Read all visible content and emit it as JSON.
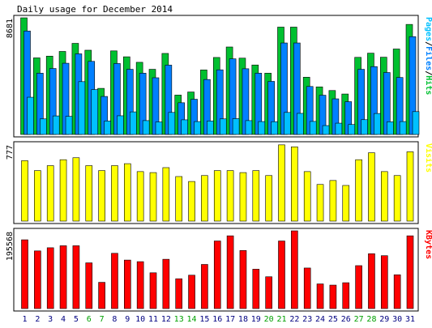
{
  "chart_data": {
    "type": "bar",
    "title": "Daily usage for December 2014",
    "categories": [
      "1",
      "2",
      "3",
      "4",
      "5",
      "6",
      "7",
      "8",
      "9",
      "10",
      "11",
      "12",
      "13",
      "14",
      "15",
      "16",
      "17",
      "18",
      "19",
      "20",
      "21",
      "22",
      "23",
      "24",
      "25",
      "26",
      "27",
      "28",
      "29",
      "30",
      "31"
    ],
    "weekend_days": [
      "6",
      "7",
      "13",
      "14",
      "20",
      "21",
      "27",
      "28"
    ],
    "colors": {
      "hits": "#00c030",
      "files": "#0080ff",
      "pages": "#00c0ff",
      "visits": "#ffff00",
      "kbytes": "#ff0000",
      "weekday_label": "#000080",
      "weekend_label": "#00a000"
    },
    "panels": [
      {
        "id": "hits-files-pages",
        "ymax_label": "8681",
        "ylim": [
          0,
          8681
        ],
        "legend": [
          {
            "text": "Pages",
            "color": "#00c0ff"
          },
          {
            "text": "/",
            "color": "#000000"
          },
          {
            "text": "Files",
            "color": "#0080ff"
          },
          {
            "text": "/",
            "color": "#000000"
          },
          {
            "text": "Hits",
            "color": "#00c030"
          }
        ],
        "series": [
          {
            "name": "Hits",
            "color": "#00c030",
            "values": [
              8681,
              5700,
              5830,
              6180,
              6780,
              6270,
              3430,
              6220,
              5780,
              5370,
              4850,
              6030,
              2930,
              3160,
              4800,
              5730,
              6510,
              5680,
              5170,
              4560,
              7990,
              7990,
              4260,
              3540,
              3270,
              3010,
              5740,
              6050,
              5750,
              6360,
              8190
            ]
          },
          {
            "name": "Files",
            "color": "#0080ff",
            "values": [
              7700,
              4560,
              4910,
              5300,
              6000,
              5440,
              2830,
              5280,
              4850,
              4560,
              4220,
              5160,
              2360,
              2620,
              4090,
              4810,
              5630,
              4890,
              4560,
              3950,
              6810,
              6810,
              3570,
              2920,
              2650,
              2440,
              4850,
              5050,
              4610,
              4240,
              7280
            ]
          },
          {
            "name": "Pages",
            "color": "#00c0ff",
            "values": [
              2770,
              1160,
              1380,
              1350,
              3930,
              3340,
              1000,
              1390,
              1680,
              1030,
              930,
              1640,
              1090,
              960,
              1000,
              1160,
              1180,
              1030,
              960,
              950,
              1640,
              1570,
              970,
              660,
              840,
              740,
              1100,
              1560,
              940,
              960,
              1700
            ]
          }
        ]
      },
      {
        "id": "visits",
        "ymax_label": "777",
        "ylim": [
          0,
          777
        ],
        "legend": [
          {
            "text": "Visits",
            "color": "#ffff00"
          }
        ],
        "series": [
          {
            "name": "Visits",
            "color": "#ffff00",
            "values": [
              610,
              510,
              560,
              620,
              640,
              560,
              510,
              560,
              580,
              500,
              490,
              540,
              450,
              400,
              460,
              510,
              510,
              490,
              510,
              460,
              770,
              750,
              500,
              370,
              410,
              360,
              620,
              690,
              500,
              460,
              700
            ]
          }
        ]
      },
      {
        "id": "kbytes",
        "ymax_label": "195568",
        "ylim": [
          0,
          195568
        ],
        "legend": [
          {
            "text": "KBytes",
            "color": "#ff0000"
          }
        ],
        "series": [
          {
            "name": "KBytes",
            "color": "#ff0000",
            "values": [
              173000,
              145000,
              153000,
              158000,
              158000,
              115000,
              66000,
              139000,
              122000,
              118000,
              90000,
              124000,
              75000,
              84000,
              111000,
              170000,
              183000,
              146000,
              99000,
              80000,
              170000,
              195568,
              102000,
              62000,
              59000,
              65000,
              108000,
              138000,
              133000,
              85000,
              183000
            ]
          }
        ]
      }
    ]
  }
}
